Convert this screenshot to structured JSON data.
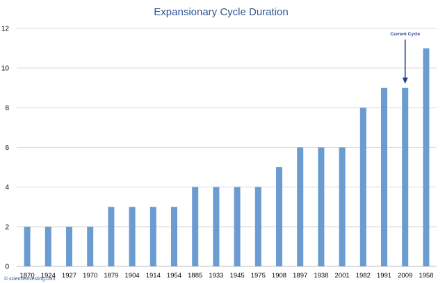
{
  "chart_data": {
    "type": "bar",
    "title": "Expansionary Cycle Duration",
    "xlabel": "",
    "ylabel": "",
    "categories": [
      "1870",
      "1924",
      "1927",
      "1970",
      "1879",
      "1904",
      "1914",
      "1954",
      "1885",
      "1933",
      "1945",
      "1975",
      "1908",
      "1897",
      "1938",
      "2001",
      "1982",
      "1991",
      "2009",
      "1958"
    ],
    "values": [
      2,
      2,
      2,
      2,
      3,
      3,
      3,
      3,
      4,
      4,
      4,
      4,
      5,
      6,
      6,
      6,
      8,
      9,
      9,
      11
    ],
    "ylim": [
      0,
      12
    ],
    "yticks": [
      0,
      2,
      4,
      6,
      8,
      10,
      12
    ],
    "grid": true,
    "legend": "none",
    "bar_color": "#6a9bd1",
    "annotation": {
      "text": "Current Cycle",
      "category": "2009",
      "arrow_color": "#1f3f8f"
    },
    "credit": "© scienceinvesting.com"
  }
}
